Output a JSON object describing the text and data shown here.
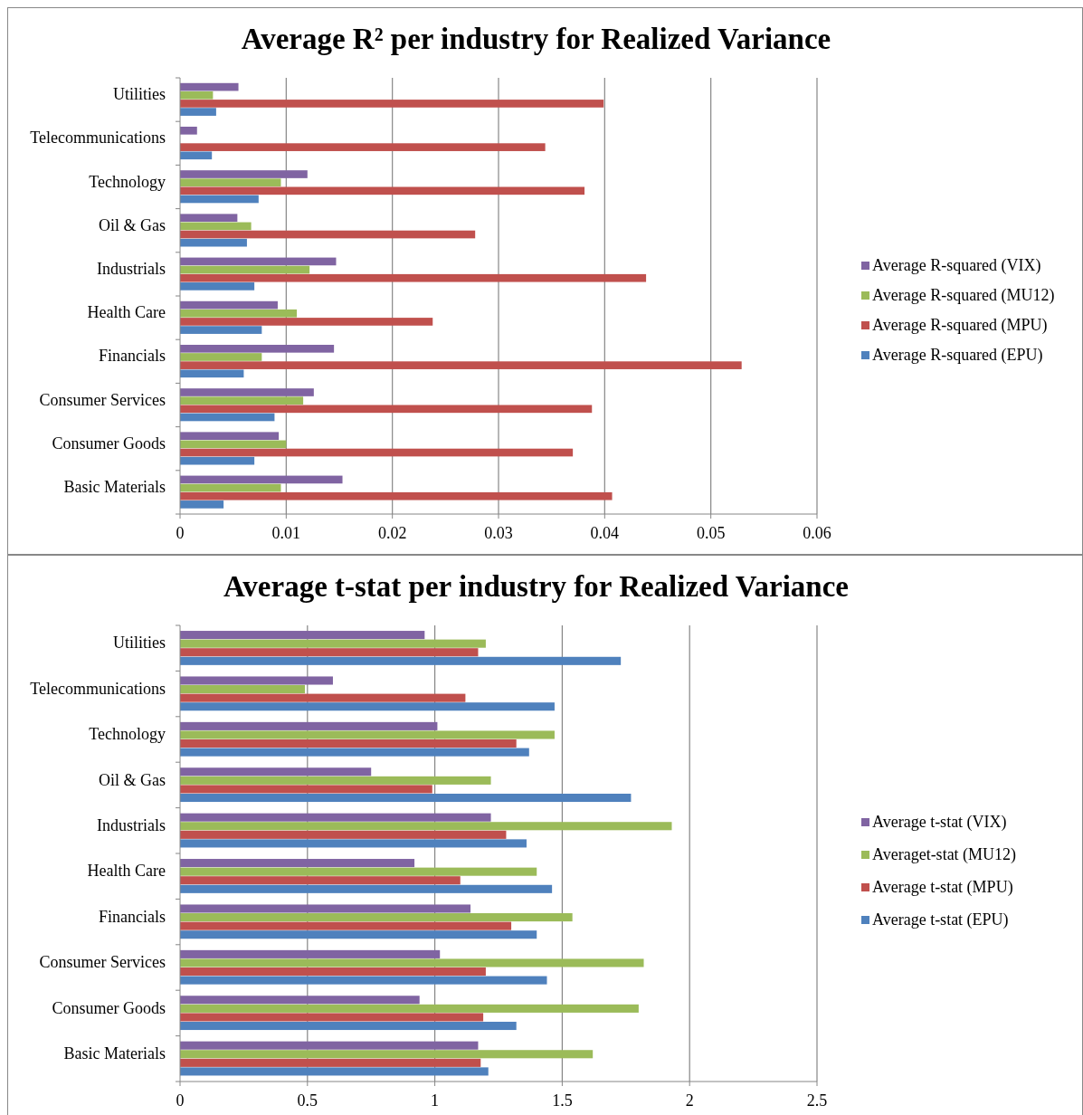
{
  "chart_data": [
    {
      "type": "bar",
      "orientation": "horizontal",
      "title": "Average R² per industry for Realized Variance",
      "categories": [
        "Utilities",
        "Telecommunications",
        "Technology",
        "Oil & Gas",
        "Industrials",
        "Health Care",
        "Financials",
        "Consumer Services",
        "Consumer Goods",
        "Basic Materials"
      ],
      "series": [
        {
          "name": "Average R-squared (VIX)",
          "color": "#8064a2",
          "values": [
            0.0055,
            0.0016,
            0.012,
            0.0054,
            0.0147,
            0.0092,
            0.0145,
            0.0126,
            0.0093,
            0.0153
          ]
        },
        {
          "name": "Average R-squared (MU12)",
          "color": "#9bbb59",
          "values": [
            0.0031,
            null,
            0.0095,
            0.0067,
            0.0122,
            0.011,
            0.0077,
            0.0116,
            0.01,
            0.0095
          ]
        },
        {
          "name": "Average R-squared (MPU)",
          "color": "#c0504d",
          "values": [
            0.0399,
            0.0344,
            0.0381,
            0.0278,
            0.0439,
            0.0238,
            0.0529,
            0.0388,
            0.037,
            0.0407
          ]
        },
        {
          "name": "Average R-squared (EPU)",
          "color": "#4f81bd",
          "values": [
            0.0034,
            0.003,
            0.0074,
            0.0063,
            0.007,
            0.0077,
            0.006,
            0.0089,
            0.007,
            0.0041
          ]
        }
      ],
      "xlim": [
        0,
        0.06
      ],
      "xticks": [
        0,
        0.01,
        0.02,
        0.03,
        0.04,
        0.05,
        0.06
      ],
      "grid": "x",
      "legend": "right"
    },
    {
      "type": "bar",
      "orientation": "horizontal",
      "title": "Average t-stat per industry for Realized Variance",
      "categories": [
        "Utilities",
        "Telecommunications",
        "Technology",
        "Oil & Gas",
        "Industrials",
        "Health Care",
        "Financials",
        "Consumer Services",
        "Consumer Goods",
        "Basic Materials"
      ],
      "series": [
        {
          "name": "Average t-stat (VIX)",
          "color": "#8064a2",
          "values": [
            0.96,
            0.6,
            1.01,
            0.75,
            1.22,
            0.92,
            1.14,
            1.02,
            0.94,
            1.17
          ]
        },
        {
          "name": "Averaget-stat (MU12)",
          "color": "#9bbb59",
          "values": [
            1.2,
            0.49,
            1.47,
            1.22,
            1.93,
            1.4,
            1.54,
            1.82,
            1.8,
            1.62
          ]
        },
        {
          "name": "Average t-stat (MPU)",
          "color": "#c0504d",
          "values": [
            1.17,
            1.12,
            1.32,
            0.99,
            1.28,
            1.1,
            1.3,
            1.2,
            1.19,
            1.18
          ]
        },
        {
          "name": "Average t-stat (EPU)",
          "color": "#4f81bd",
          "values": [
            1.73,
            1.47,
            1.37,
            1.77,
            1.36,
            1.46,
            1.4,
            1.44,
            1.32,
            1.21
          ]
        }
      ],
      "xlim": [
        0,
        2.5
      ],
      "xticks": [
        0,
        0.5,
        1,
        1.5,
        2,
        2.5
      ],
      "grid": "x",
      "legend": "right"
    }
  ]
}
